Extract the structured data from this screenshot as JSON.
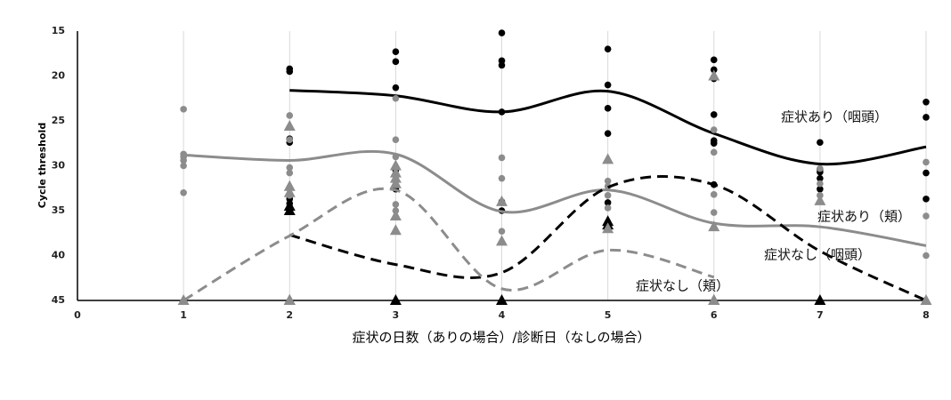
{
  "chart_data": {
    "type": "scatter",
    "y_label": "Cycle threshold",
    "x_label": "症状の日数（ありの場合）/診断日（なしの場合）",
    "xlim": [
      0,
      8
    ],
    "xticks": [
      0,
      1,
      2,
      3,
      4,
      5,
      6,
      7,
      8
    ],
    "ylim": [
      45,
      15
    ],
    "yticks": [
      15,
      20,
      25,
      30,
      35,
      40,
      45
    ],
    "grid": true,
    "series": [
      {
        "name": "症状あり（咽頭）",
        "color": "#000000",
        "marker": "circle",
        "dash": false,
        "x": [
          2,
          2,
          2,
          2,
          2,
          2,
          2,
          2,
          3,
          3,
          3,
          3,
          3,
          3,
          4,
          4,
          4,
          4,
          4,
          4,
          5,
          5,
          5,
          5,
          5,
          5,
          6,
          6,
          6,
          6,
          6,
          6,
          6,
          7,
          7,
          7,
          7,
          7,
          8,
          8,
          8,
          8
        ],
        "values": [
          19.2,
          19.5,
          27,
          27.4,
          33.7,
          34.2,
          34.6,
          35,
          17.3,
          18.4,
          21.3,
          30.5,
          31.5,
          32.6,
          15.2,
          18.3,
          18.8,
          24,
          34,
          35,
          17,
          21,
          23.6,
          26.4,
          34.1,
          36.3,
          18.2,
          19.3,
          20.3,
          24.3,
          27.2,
          27.5,
          32.1,
          27.4,
          30.4,
          30.7,
          31.4,
          32.6,
          22.9,
          24.6,
          30.8,
          33.7
        ],
        "trend": {
          "x": [
            2,
            3,
            4,
            5,
            6,
            7,
            8
          ],
          "values": [
            21.6,
            22.2,
            24,
            21.7,
            26.4,
            29.8,
            27.9
          ]
        }
      },
      {
        "name": "症状あり（頬）",
        "color": "#8c8c8c",
        "marker": "circle",
        "dash": false,
        "x": [
          1,
          1,
          1,
          1,
          1,
          1,
          2,
          2,
          2,
          2,
          2,
          3,
          3,
          3,
          3,
          3,
          4,
          4,
          4,
          4,
          5,
          5,
          5,
          5,
          6,
          6,
          6,
          6,
          7,
          7,
          7,
          8,
          8,
          8
        ],
        "values": [
          23.7,
          28.7,
          29,
          29.4,
          30,
          33,
          24.4,
          27.1,
          30.2,
          30.8,
          33.3,
          22.5,
          27.1,
          29,
          34.3,
          35,
          29.1,
          31.4,
          34.1,
          37.3,
          31.7,
          32.3,
          33.3,
          34.7,
          26,
          28.5,
          33.2,
          35.2,
          30.3,
          32,
          33.3,
          29.6,
          35.6,
          40
        ],
        "trend": {
          "x": [
            1,
            2,
            3,
            4,
            5,
            6,
            7,
            8
          ],
          "values": [
            28.8,
            29.4,
            28.7,
            35.1,
            32.7,
            36.4,
            36.8,
            38.9
          ]
        }
      },
      {
        "name": "症状なし（咽頭）",
        "color": "#000000",
        "marker": "triangle",
        "dash": true,
        "x": [
          2,
          2,
          2,
          3,
          4,
          5,
          5,
          6,
          7
        ],
        "values": [
          34.5,
          35,
          45,
          45,
          45,
          36.2,
          36.6,
          45,
          45
        ],
        "trend": {
          "x": [
            2,
            3,
            4,
            5,
            6,
            7,
            8
          ],
          "values": [
            37.7,
            41,
            41.9,
            32.4,
            32.1,
            39.5,
            45
          ]
        }
      },
      {
        "name": "症状なし（頬）",
        "color": "#8c8c8c",
        "marker": "triangle",
        "dash": true,
        "x": [
          1,
          2,
          2,
          2,
          2,
          3,
          3,
          3,
          3,
          3,
          3,
          4,
          4,
          5,
          5,
          6,
          6,
          6,
          7,
          8
        ],
        "values": [
          45,
          25.6,
          32.3,
          33,
          45,
          30,
          30.8,
          31.4,
          32,
          35.6,
          37.2,
          34,
          38.4,
          29.3,
          37,
          20,
          36.8,
          45,
          33.9,
          45
        ],
        "trend": {
          "x": [
            1,
            2,
            3,
            4,
            5,
            6
          ],
          "values": [
            45,
            37.8,
            32.7,
            43.7,
            39.4,
            42.4
          ]
        }
      }
    ]
  }
}
